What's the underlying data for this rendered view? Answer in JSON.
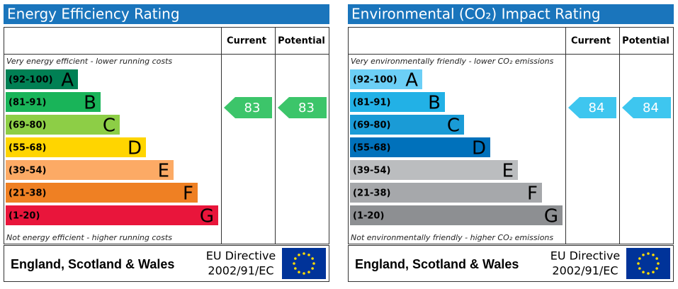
{
  "chart_data": [
    {
      "type": "epc",
      "title": "Energy Efficiency Rating",
      "columns": [
        "Current",
        "Potential"
      ],
      "top_note": "Very energy efficient - lower running costs",
      "bottom_note": "Not energy efficient - higher running costs",
      "bands": [
        {
          "range": "(92-100)",
          "letter": "A",
          "color": "#008054"
        },
        {
          "range": "(81-91)",
          "letter": "B",
          "color": "#19b459"
        },
        {
          "range": "(69-80)",
          "letter": "C",
          "color": "#8dce46"
        },
        {
          "range": "(55-68)",
          "letter": "D",
          "color": "#ffd500"
        },
        {
          "range": "(39-54)",
          "letter": "E",
          "color": "#fcaa65"
        },
        {
          "range": "(21-38)",
          "letter": "F",
          "color": "#ef8023"
        },
        {
          "range": "(1-20)",
          "letter": "G",
          "color": "#e9153b"
        }
      ],
      "current": 83,
      "potential": 83,
      "arrow_color": "#3cc56a",
      "region": "England, Scotland & Wales",
      "directive": [
        "EU Directive",
        "2002/91/EC"
      ]
    },
    {
      "type": "epc",
      "title": "Environmental (CO₂) Impact Rating",
      "columns": [
        "Current",
        "Potential"
      ],
      "top_note": "Very environmentally friendly - lower CO₂ emissions",
      "bottom_note": "Not environmentally friendly - higher CO₂ emissions",
      "bands": [
        {
          "range": "(92-100)",
          "letter": "A",
          "color": "#6ccff6"
        },
        {
          "range": "(81-91)",
          "letter": "B",
          "color": "#22b1e6"
        },
        {
          "range": "(69-80)",
          "letter": "C",
          "color": "#1a9bd6"
        },
        {
          "range": "(55-68)",
          "letter": "D",
          "color": "#0071bb"
        },
        {
          "range": "(39-54)",
          "letter": "E",
          "color": "#bbbdbf"
        },
        {
          "range": "(21-38)",
          "letter": "F",
          "color": "#a6a8ab"
        },
        {
          "range": "(1-20)",
          "letter": "G",
          "color": "#8d8f92"
        }
      ],
      "current": 84,
      "potential": 84,
      "arrow_color": "#3ec6ef",
      "region": "England, Scotland & Wales",
      "directive": [
        "EU Directive",
        "2002/91/EC"
      ]
    }
  ]
}
